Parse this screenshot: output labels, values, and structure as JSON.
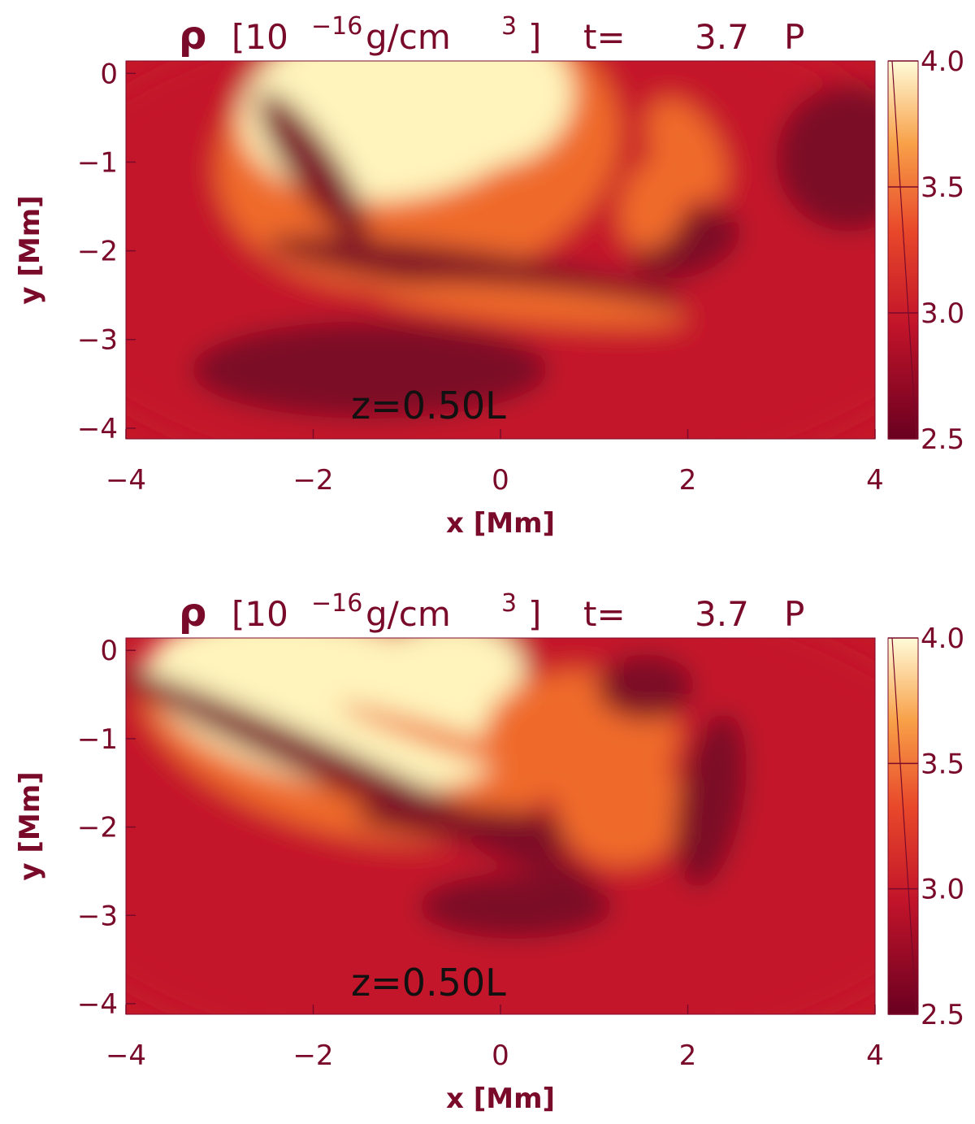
{
  "chart_data": [
    {
      "type": "heatmap",
      "title": {
        "quantity": "ρ",
        "unit_open": "[10",
        "unit_exponent": "−16",
        "unit": "g/cm",
        "unit_power": "3",
        "unit_close": "]",
        "time_label": "t=",
        "time": 3.7,
        "time_unit": "P"
      },
      "annotation": "z=0.50L",
      "xlabel": "x [Mm]",
      "ylabel": "y [Mm]",
      "xlim": [
        -4,
        4
      ],
      "xticks": [
        {
          "value": -4,
          "label": "−4"
        },
        {
          "value": -2,
          "label": "−2"
        },
        0,
        2,
        4
      ],
      "ylim": [
        -4.12,
        0.14
      ],
      "yticks": [
        {
          "value": -4,
          "label": "−4"
        },
        {
          "value": -3,
          "label": "−3"
        },
        {
          "value": -2,
          "label": "−2"
        },
        {
          "value": -1,
          "label": "−1"
        },
        0
      ],
      "colorbar": {
        "lim": [
          2.5,
          4.0
        ],
        "ticks": [
          {
            "value": 2.5,
            "label": "2.5"
          },
          {
            "value": 3,
            "label": "3.0"
          },
          3.5,
          {
            "value": 4,
            "label": "4.0"
          }
        ]
      }
    },
    {
      "type": "heatmap",
      "title": {
        "quantity": "ρ",
        "unit_open": "[10",
        "unit_exponent": "−16",
        "unit": "g/cm",
        "unit_power": "3",
        "unit_close": "]",
        "time_label": "t=",
        "time": 3.7,
        "time_unit": "P"
      },
      "annotation": "z=0.50L",
      "xlabel": "x [Mm]",
      "ylabel": "y [Mm]",
      "xlim": [
        -4,
        4
      ],
      "xticks": [
        {
          "value": -4,
          "label": "−4"
        },
        {
          "value": -2,
          "label": "−2"
        },
        0,
        2,
        4
      ],
      "ylim": [
        -4.12,
        0.14
      ],
      "yticks": [
        {
          "value": -4,
          "label": "−4"
        },
        {
          "value": -3,
          "label": "−3"
        },
        {
          "value": -2,
          "label": "−2"
        },
        {
          "value": -1,
          "label": "−1"
        },
        0
      ],
      "colorbar": {
        "lim": [
          2.5,
          4.0
        ],
        "ticks": [
          {
            "value": 2.5,
            "label": "2.5"
          },
          {
            "value": 3,
            "label": "3.0"
          },
          3.5,
          {
            "value": 4,
            "label": "4.0"
          }
        ]
      }
    }
  ]
}
